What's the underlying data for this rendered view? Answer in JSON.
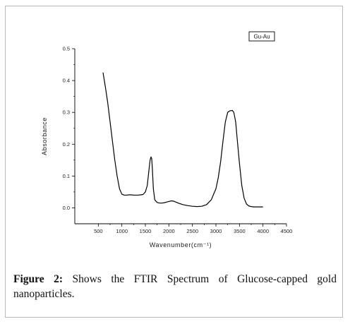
{
  "caption": {
    "label": "Figure 2:",
    "text": " Shows the FTIR Spectrum of Glucose-capped gold nanoparticles."
  },
  "chart_data": {
    "type": "line",
    "title": "",
    "xlabel": "Wavenumber(cm⁻¹)",
    "ylabel": "Absorbance",
    "xlim": [
      0,
      4500
    ],
    "ylim": [
      -0.05,
      0.5
    ],
    "x_ticks": [
      500,
      1000,
      1500,
      2000,
      2500,
      3000,
      3500,
      4000,
      4500
    ],
    "y_ticks": [
      0.0,
      0.1,
      0.2,
      0.3,
      0.4,
      0.5
    ],
    "y_tick_labels": [
      "0.0",
      "0.1",
      "0.2",
      "0.3",
      "0.4",
      "0.5"
    ],
    "grid": false,
    "legend_position": "top-right",
    "series": [
      {
        "name": "Gu-Au",
        "color": "#000000",
        "x": [
          600,
          650,
          700,
          750,
          800,
          850,
          900,
          950,
          1000,
          1050,
          1100,
          1150,
          1200,
          1250,
          1300,
          1350,
          1400,
          1450,
          1500,
          1540,
          1570,
          1600,
          1620,
          1635,
          1650,
          1670,
          1700,
          1750,
          1800,
          1850,
          1900,
          1950,
          2000,
          2050,
          2100,
          2150,
          2200,
          2300,
          2400,
          2500,
          2600,
          2700,
          2800,
          2900,
          3000,
          3050,
          3100,
          3150,
          3200,
          3250,
          3300,
          3350,
          3380,
          3420,
          3450,
          3500,
          3550,
          3600,
          3650,
          3700,
          3750,
          3800,
          3900,
          4000
        ],
        "y": [
          0.425,
          0.38,
          0.33,
          0.27,
          0.21,
          0.15,
          0.1,
          0.06,
          0.043,
          0.04,
          0.04,
          0.041,
          0.041,
          0.04,
          0.04,
          0.04,
          0.041,
          0.042,
          0.05,
          0.07,
          0.11,
          0.15,
          0.16,
          0.155,
          0.12,
          0.06,
          0.025,
          0.017,
          0.015,
          0.015,
          0.016,
          0.018,
          0.02,
          0.022,
          0.021,
          0.018,
          0.015,
          0.01,
          0.007,
          0.005,
          0.004,
          0.005,
          0.01,
          0.025,
          0.06,
          0.095,
          0.145,
          0.21,
          0.27,
          0.3,
          0.305,
          0.306,
          0.3,
          0.27,
          0.22,
          0.14,
          0.07,
          0.03,
          0.012,
          0.006,
          0.004,
          0.003,
          0.003,
          0.003
        ]
      }
    ]
  }
}
